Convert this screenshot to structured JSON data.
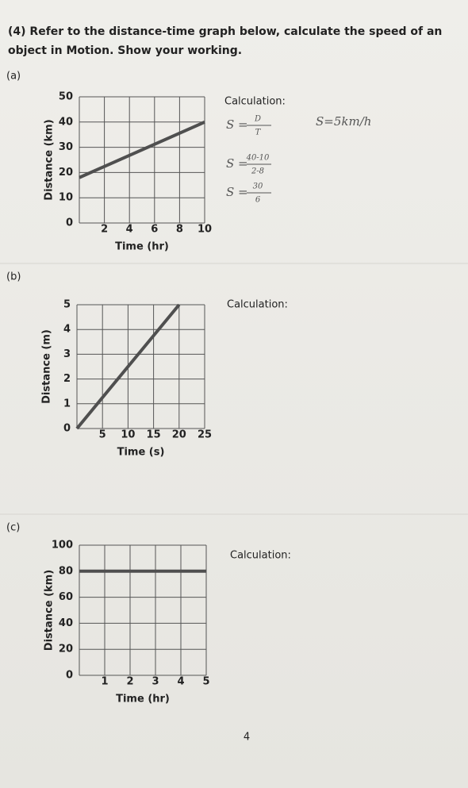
{
  "question": "(4) Refer to the distance-time graph below, calculate the speed of an object in Motion. Show your working.",
  "parts": [
    {
      "label": "(a)",
      "calculation_label": "Calculation:",
      "working": [
        {
          "lhs": "S =",
          "num": "D",
          "den": "T"
        },
        {
          "lhs": "S =",
          "num": "40-10",
          "den": "2-8"
        },
        {
          "lhs": "S =",
          "num": "30",
          "den": "6"
        }
      ],
      "answer": "S=5km/h"
    },
    {
      "label": "(b)",
      "calculation_label": "Calculation:"
    },
    {
      "label": "(c)",
      "calculation_label": "Calculation:"
    }
  ],
  "chart_data": [
    {
      "type": "line",
      "x_label": "Time (hr)",
      "y_label": "Distance (km)",
      "x": [
        0,
        10
      ],
      "values": [
        18,
        40
      ],
      "color": "#4f4f4f",
      "xlim": [
        0,
        10
      ],
      "ylim": [
        0,
        50
      ],
      "xticks": [
        2,
        4,
        6,
        8,
        10
      ],
      "yticks": [
        0,
        10,
        20,
        30,
        40,
        50
      ],
      "grid": true
    },
    {
      "type": "line",
      "x_label": "Time (s)",
      "y_label": "Distance (m)",
      "x": [
        0,
        20
      ],
      "values": [
        0,
        5
      ],
      "color": "#4f4f4f",
      "xlim": [
        0,
        25
      ],
      "ylim": [
        0,
        5
      ],
      "xticks": [
        5,
        10,
        15,
        20,
        25
      ],
      "yticks": [
        0,
        1,
        2,
        3,
        4,
        5
      ],
      "grid": true
    },
    {
      "type": "line",
      "x_label": "Time (hr)",
      "y_label": "Distance (km)",
      "x": [
        0,
        5
      ],
      "values": [
        80,
        80
      ],
      "color": "#4f4f4f",
      "xlim": [
        0,
        5
      ],
      "ylim": [
        0,
        100
      ],
      "xticks": [
        1,
        2,
        3,
        4,
        5
      ],
      "yticks": [
        0,
        20,
        40,
        60,
        80,
        100
      ],
      "grid": true
    }
  ],
  "page_number": "4"
}
